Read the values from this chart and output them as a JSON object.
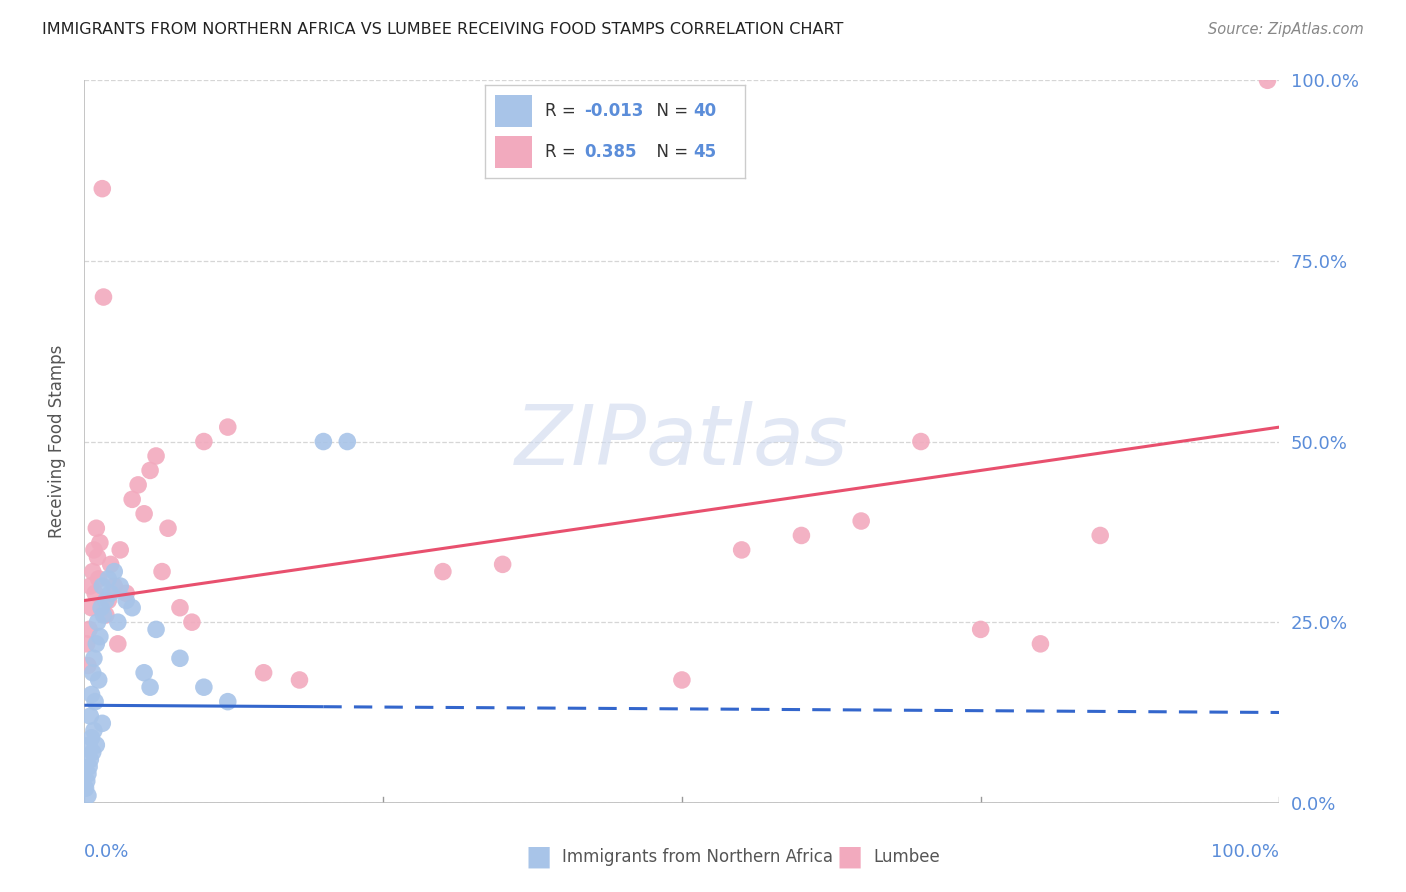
{
  "title": "IMMIGRANTS FROM NORTHERN AFRICA VS LUMBEE RECEIVING FOOD STAMPS CORRELATION CHART",
  "source": "Source: ZipAtlas.com",
  "ylabel": "Receiving Food Stamps",
  "ytick_labels": [
    "0.0%",
    "25.0%",
    "50.0%",
    "75.0%",
    "100.0%"
  ],
  "ytick_values": [
    0.0,
    0.25,
    0.5,
    0.75,
    1.0
  ],
  "xtick_values": [
    0.0,
    0.25,
    0.5,
    0.75,
    1.0
  ],
  "legend_blue_r": "-0.013",
  "legend_blue_n": "40",
  "legend_pink_r": "0.385",
  "legend_pink_n": "45",
  "blue_color": "#a8c4e8",
  "pink_color": "#f2aabe",
  "blue_line_color": "#3366cc",
  "pink_line_color": "#e8506e",
  "blue_line_solid_end": 0.2,
  "blue_line_y_start": 0.135,
  "blue_line_y_end": 0.125,
  "pink_line_y_start": 0.28,
  "pink_line_y_end": 0.52,
  "watermark_text": "ZIPatlas",
  "watermark_color": "#cdd8ee",
  "bg_color": "#ffffff",
  "grid_color": "#cccccc",
  "title_color": "#222222",
  "source_color": "#888888",
  "axis_label_color": "#555555",
  "tick_label_color": "#5b8dd9",
  "legend_border_color": "#cccccc",
  "bottom_label_color": "#555555"
}
